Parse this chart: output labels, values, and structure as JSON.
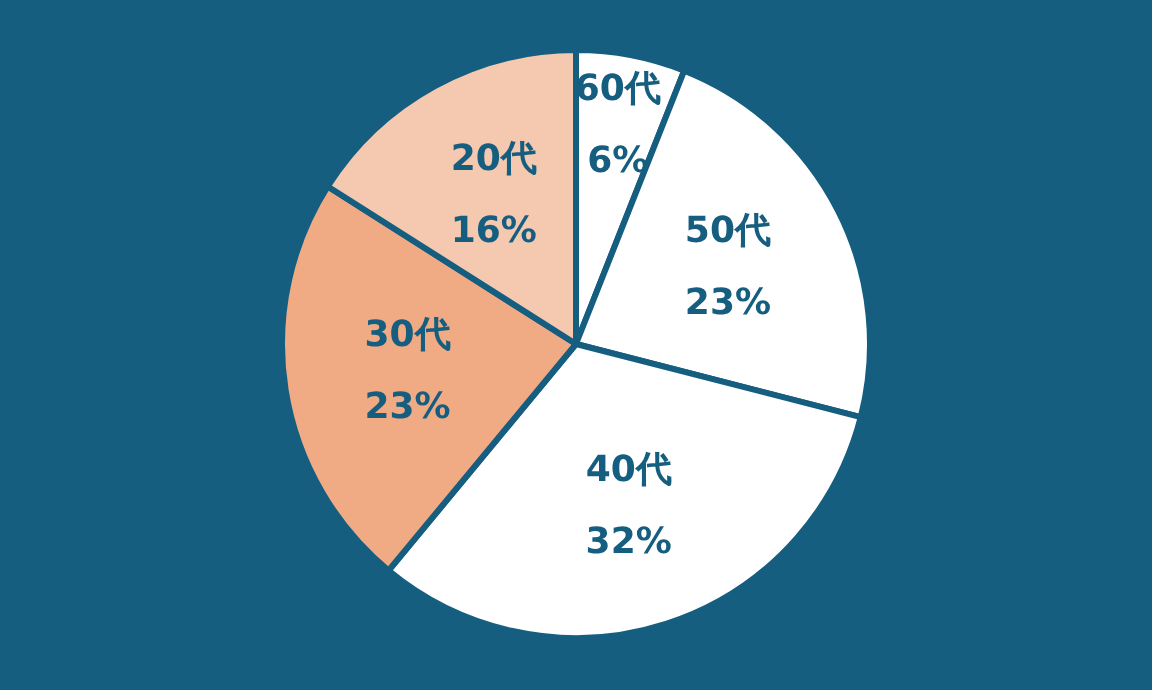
{
  "chart_data": {
    "type": "pie",
    "categories": [
      "60代",
      "50代",
      "40代",
      "30代",
      "20代"
    ],
    "values": [
      6,
      23,
      32,
      23,
      16
    ],
    "value_labels": [
      "6%",
      "23%",
      "32%",
      "23%",
      "16%"
    ],
    "colors": [
      "#ffffff",
      "#ffffff",
      "#ffffff",
      "#f0aa84",
      "#f5c9b0"
    ],
    "legend": false
  }
}
